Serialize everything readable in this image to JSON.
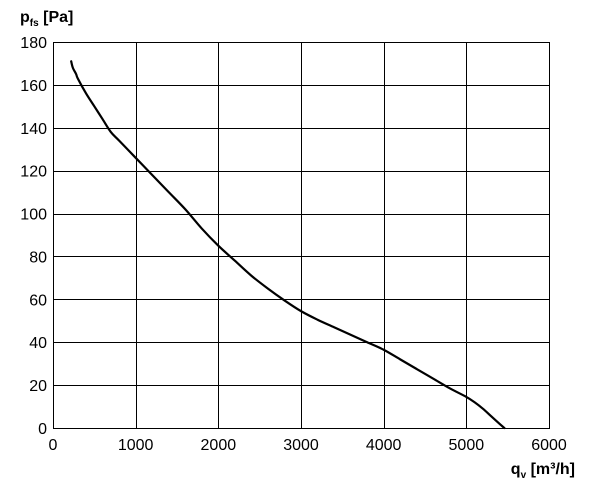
{
  "chart_data": {
    "type": "line",
    "title": "",
    "ylabel": {
      "main": "p",
      "sub": "fs",
      "unit": "[Pa]"
    },
    "xlabel": {
      "main": "q",
      "sub": "v",
      "unit": "[m³/h]"
    },
    "xlim": [
      0,
      6000
    ],
    "ylim": [
      0,
      180
    ],
    "x_ticks": [
      0,
      1000,
      2000,
      3000,
      4000,
      5000,
      6000
    ],
    "y_ticks": [
      0,
      20,
      40,
      60,
      80,
      100,
      120,
      140,
      160,
      180
    ],
    "grid": true,
    "series": [
      {
        "color": "#000000",
        "x": [
          220,
          240,
          280,
          300,
          400,
          500,
          600,
          700,
          800,
          1000,
          1200,
          1400,
          1600,
          1800,
          2000,
          2200,
          2400,
          2600,
          2800,
          3000,
          3200,
          3400,
          3600,
          3800,
          4000,
          4200,
          4400,
          4600,
          4800,
          5000,
          5100,
          5200,
          5300,
          5400,
          5460
        ],
        "y": [
          171,
          168,
          165,
          163,
          156,
          150,
          144,
          138,
          134,
          126,
          118,
          110,
          102,
          93,
          85,
          78,
          71,
          65,
          59.5,
          54.5,
          50.5,
          47,
          43.5,
          40,
          36.5,
          32,
          27.5,
          23,
          18.5,
          14.5,
          12,
          9,
          5.5,
          2,
          0
        ]
      }
    ]
  }
}
